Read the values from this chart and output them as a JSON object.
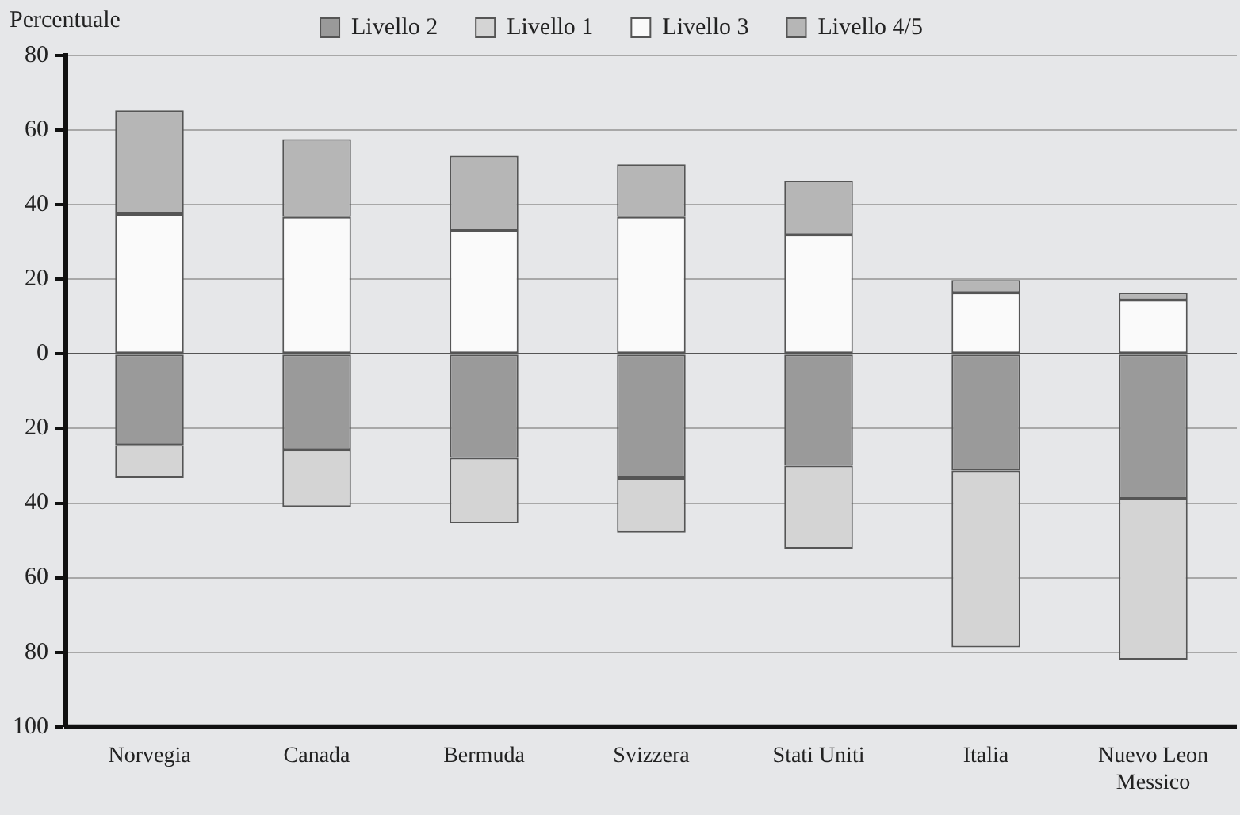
{
  "chart_data": {
    "type": "bar",
    "stacked": true,
    "ylabel": "Percentuale",
    "categories": [
      "Norvegia",
      "Canada",
      "Bermuda",
      "Svizzera",
      "Stati Uniti",
      "Italia",
      "Nuevo Leon Messico"
    ],
    "series": [
      {
        "name": "Livello 2",
        "color": "#9a9a9a",
        "values": [
          -24.4,
          -25.7,
          -27.9,
          -33.3,
          -30,
          -31.3,
          -38.8
        ]
      },
      {
        "name": "Livello 1",
        "color": "#d4d4d4",
        "values": [
          -8.9,
          -15.3,
          -17.5,
          -14.6,
          -22.2,
          -47.4,
          -43.2
        ]
      },
      {
        "name": "Livello 3",
        "color": "#fafafa",
        "values": [
          37.5,
          36.7,
          33,
          36.7,
          31.9,
          16.4,
          14.4
        ]
      },
      {
        "name": "Livello 4/5",
        "color": "#b6b6b6",
        "values": [
          27.8,
          20.9,
          20.1,
          14.1,
          14.5,
          3.4,
          2
        ]
      }
    ],
    "ylim": [
      -100,
      80
    ],
    "yticks": [
      {
        "value": -100,
        "label": "100"
      },
      {
        "value": -80,
        "label": "80"
      },
      {
        "value": -60,
        "label": "60"
      },
      {
        "value": -40,
        "label": "40"
      },
      {
        "value": -20,
        "label": "20"
      },
      0,
      20,
      40,
      60,
      80
    ],
    "grid": "y",
    "legend": "top"
  }
}
